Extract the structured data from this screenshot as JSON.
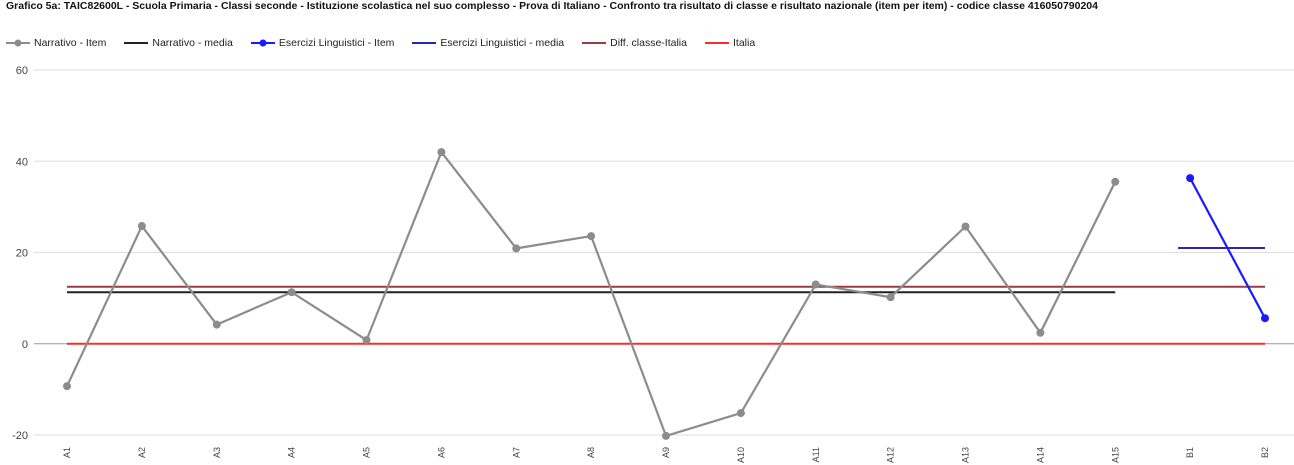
{
  "chart_data": {
    "type": "line",
    "title": "Grafico 5a: TAIC82600L - Scuola Primaria - Classi seconde - Istituzione scolastica nel suo complesso - Prova di Italiano - Confronto tra risultato di classe e risultato nazionale (item per item) - codice classe 416050790204",
    "categories": [
      "A1",
      "A2",
      "A3",
      "A4",
      "A5",
      "A6",
      "A7",
      "A8",
      "A9",
      "A10",
      "A11",
      "A12",
      "A13",
      "A14",
      "A15",
      "B1",
      "B2"
    ],
    "ylim": [
      -20,
      60
    ],
    "yticks": [
      -20,
      0,
      20,
      40,
      60
    ],
    "grid": true,
    "legend_position": "top",
    "series": [
      {
        "name": "Narrativo - Item",
        "kind": "item",
        "color": "#8c8c8c",
        "values": [
          -9.3,
          25.8,
          4.2,
          11.3,
          0.8,
          42.0,
          20.9,
          23.6,
          -20.2,
          -15.2,
          13.0,
          10.2,
          25.7,
          2.4,
          35.5,
          null,
          null
        ]
      },
      {
        "name": "Narrativo - media",
        "kind": "mean",
        "color": "#222222",
        "value": 11.3,
        "from": "A1",
        "to": "A15"
      },
      {
        "name": "Esercizi Linguistici - Item",
        "kind": "item",
        "color": "#1a1aff",
        "values": [
          null,
          null,
          null,
          null,
          null,
          null,
          null,
          null,
          null,
          null,
          null,
          null,
          null,
          null,
          null,
          36.3,
          5.6
        ]
      },
      {
        "name": "Esercizi Linguistici - media",
        "kind": "mean",
        "color": "#2a2aa8",
        "value": 21.0,
        "from": "B1",
        "to": "B2"
      },
      {
        "name": "Diff. classe-Italia",
        "kind": "mean",
        "color": "#9c3a45",
        "value": 12.5,
        "from": "A1",
        "to": "B2"
      },
      {
        "name": "Italia",
        "kind": "mean",
        "color": "#ff2a2a",
        "value": 0,
        "from": "A1",
        "to": "B2"
      }
    ]
  }
}
